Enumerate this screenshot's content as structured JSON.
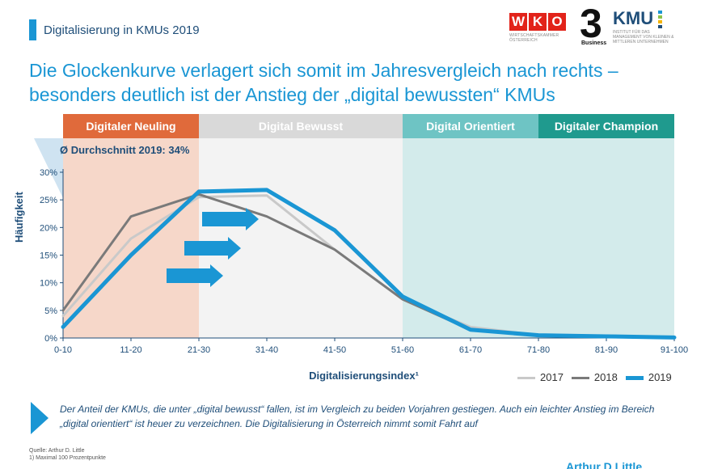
{
  "header": {
    "title": "Digitalisierung in KMUs 2019",
    "logo_wko": "WKO",
    "logo_wko_sub": "WIRTSCHAFTSKAMMER ÖSTERREICH",
    "logo_three": "3",
    "logo_three_sub": "Business",
    "logo_kmu": "KMU",
    "logo_kmu_sub": "INSTITUT FÜR DAS MANAGEMENT VON KLEINEN & MITTLEREN UNTERNEHMEN"
  },
  "headline": "Die Glockenkurve verlagert sich somit im Jahresvergleich nach rechts – besonders deutlich ist der Anstieg der „digital bewussten“ KMUs",
  "chart_data": {
    "type": "line",
    "bands": [
      {
        "label": "Digitaler Neuling",
        "from": "0-10",
        "to": "21-30",
        "color": "#e06a3b",
        "bg": "#f6d7c9"
      },
      {
        "label": "Digital Bewusst",
        "from": "21-30",
        "to": "51-60",
        "color": "#d9d9d9",
        "bg": "#f3f3f3"
      },
      {
        "label": "Digital Orientiert",
        "from": "51-60",
        "to": "71-80",
        "color": "#6ec4c4",
        "bg": "#d3ebeb"
      },
      {
        "label": "Digitaler Champion",
        "from": "71-80",
        "to": "91-100",
        "color": "#1f9a8e",
        "bg": "#d3ebeb"
      }
    ],
    "categories": [
      "0-10",
      "11-20",
      "21-30",
      "31-40",
      "41-50",
      "51-60",
      "61-70",
      "71-80",
      "81-90",
      "91-100"
    ],
    "series": [
      {
        "name": "2017",
        "color": "#c9c9c9",
        "width": 3,
        "values": [
          4,
          18,
          25.5,
          25.8,
          16,
          7,
          2,
          0.5,
          0.3,
          0.1
        ]
      },
      {
        "name": "2018",
        "color": "#7a7a7a",
        "width": 3,
        "values": [
          5,
          22,
          26,
          22,
          16,
          7,
          1.5,
          0.4,
          0.2,
          0.1
        ]
      },
      {
        "name": "2019",
        "color": "#1a96d4",
        "width": 5,
        "values": [
          2,
          15,
          26.5,
          26.8,
          19.5,
          7.5,
          1.5,
          0.5,
          0.3,
          0.1
        ]
      }
    ],
    "yticks": [
      "0%",
      "5%",
      "10%",
      "15%",
      "20%",
      "25%",
      "30%"
    ],
    "ylim": [
      0,
      30
    ],
    "ylabel": "Häufigkeit",
    "xlabel": "Digitalisierungsindex¹",
    "average_label": "Ø Durchschnitt 2019: 34%",
    "legend_position": "bottom-right"
  },
  "note": "Der Anteil der KMUs, die unter „digital bewusst“ fallen, ist im Vergleich zu beiden Vorjahren gestiegen. Auch ein leichter Anstieg im Bereich „digital orientiert“ ist heuer zu verzeichnen. Die Digitalisierung in Österreich nimmt somit Fahrt auf",
  "source": {
    "line1": "Quelle: Arthur D. Little",
    "line2": "1) Maximal 100 Prozentpunkte"
  },
  "bottom_logo": "Arthur D Little"
}
